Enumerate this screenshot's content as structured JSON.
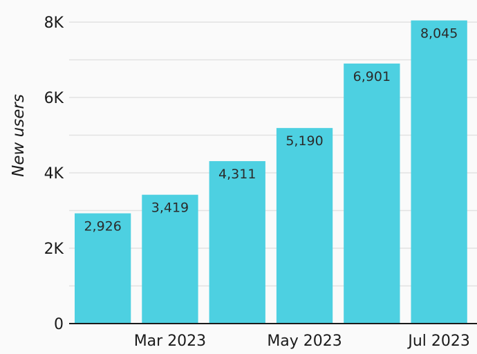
{
  "chart_data": {
    "type": "bar",
    "title": "",
    "xlabel": "",
    "ylabel": "New users",
    "x": [
      "2023-02",
      "2023-03",
      "2023-04",
      "2023-05",
      "2023-06",
      "2023-07"
    ],
    "values": [
      2926,
      3419,
      4311,
      5190,
      6901,
      8045
    ],
    "data_labels": [
      "2,926",
      "3,419",
      "4,311",
      "5,190",
      "6,901",
      "8,045"
    ],
    "x_tick_labels": [
      {
        "x": "2023-03",
        "label": "Mar 2023"
      },
      {
        "x": "2023-05",
        "label": "May 2023"
      },
      {
        "x": "2023-07",
        "label": "Jul 2023"
      }
    ],
    "y_ticks": [
      {
        "value": 0,
        "label": "0"
      },
      {
        "value": 2000,
        "label": "2K"
      },
      {
        "value": 4000,
        "label": "4K"
      },
      {
        "value": 6000,
        "label": "6K"
      },
      {
        "value": 8000,
        "label": "8K"
      }
    ],
    "y_minor_ticks": [
      1000,
      3000,
      5000,
      7000
    ],
    "ylim": [
      0,
      8000
    ],
    "bar_color": "#4dd0e1",
    "grid": true,
    "legend": "none"
  }
}
